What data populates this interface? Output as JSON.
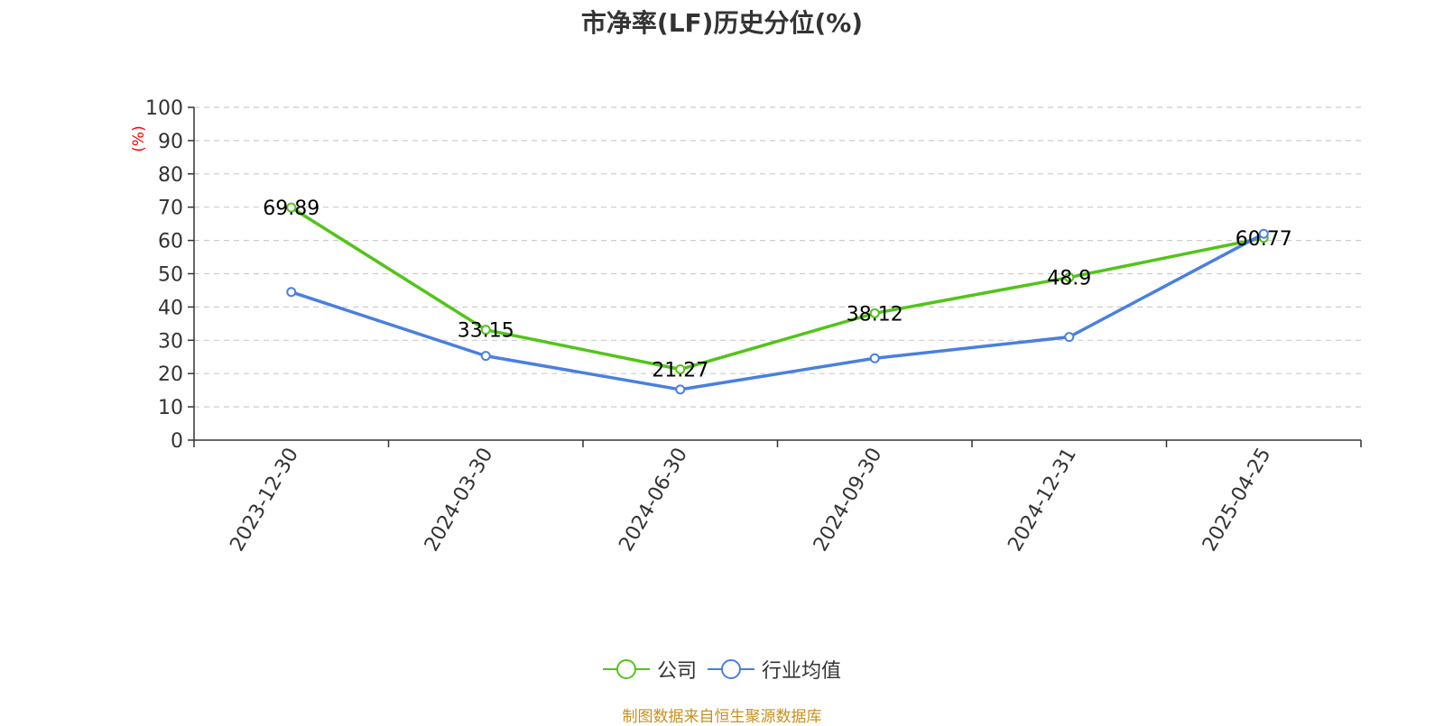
{
  "title": "市净率(LF)历史分位(%)",
  "source": "制图数据来自恒生聚源数据库",
  "colors": {
    "company": "#52c41a",
    "industry": "#4a7fe0",
    "axis": "#333333",
    "grid": "#cccccc",
    "ylabel": "#ff0000",
    "source": "#c9901e"
  },
  "chart_data": {
    "type": "line",
    "title": "市净率(LF)历史分位(%)",
    "ylabel": "(%)",
    "xlabel": "",
    "ylim": [
      0,
      100
    ],
    "yticks": [
      0,
      10,
      20,
      30,
      40,
      50,
      60,
      70,
      80,
      90,
      100
    ],
    "grid": true,
    "legend_position": "bottom-center",
    "categories": [
      "2023-12-30",
      "2024-03-30",
      "2024-06-30",
      "2024-09-30",
      "2024-12-31",
      "2025-04-25"
    ],
    "series": [
      {
        "name": "公司",
        "color": "#52c41a",
        "values": [
          69.89,
          33.15,
          21.27,
          38.12,
          48.9,
          60.77
        ],
        "show_labels": true
      },
      {
        "name": "行业均值",
        "color": "#4a7fe0",
        "values": [
          44.5,
          25.3,
          15.2,
          24.6,
          31.0,
          62.0
        ],
        "show_labels": false
      }
    ]
  }
}
